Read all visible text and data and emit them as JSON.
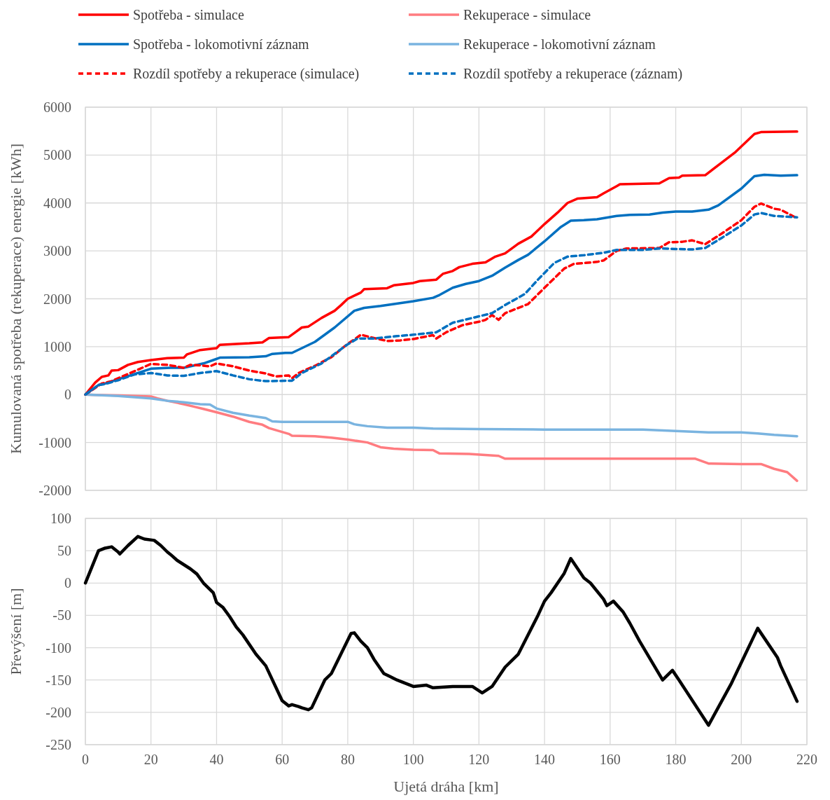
{
  "chart_data": [
    {
      "type": "line",
      "ylabel": "Kumulovaná spotřeba (rekuperace) energie [kWh]",
      "xlim": [
        0,
        220
      ],
      "xticks": [
        0,
        20,
        40,
        60,
        80,
        100,
        120,
        140,
        160,
        180,
        200,
        220
      ],
      "ylim": [
        -2000,
        6000
      ],
      "yticks": [
        -2000,
        -1000,
        0,
        1000,
        2000,
        3000,
        4000,
        5000,
        6000
      ],
      "grid": true,
      "legend": "top",
      "tick_labels": "y",
      "marker": "none",
      "series": [
        {
          "name": "Spotřeba - simulace",
          "color": "#ff0000",
          "line_style": "solid",
          "x": [
            0,
            3,
            5,
            7,
            8,
            10,
            13,
            16,
            20,
            25,
            30,
            31,
            35,
            40,
            41,
            50,
            54,
            56,
            62,
            64,
            66,
            68,
            72,
            76,
            78,
            80,
            84,
            85,
            92,
            94,
            100,
            102,
            107,
            109,
            112,
            114,
            118,
            122,
            125,
            128,
            132,
            136,
            140,
            144,
            147,
            150,
            156,
            158,
            162,
            163,
            175,
            178,
            181,
            182,
            189,
            198,
            204,
            206,
            217
          ],
          "values": [
            0,
            250,
            370,
            400,
            500,
            510,
            620,
            680,
            720,
            760,
            770,
            840,
            930,
            970,
            1040,
            1070,
            1090,
            1180,
            1200,
            1300,
            1400,
            1420,
            1600,
            1750,
            1870,
            2000,
            2130,
            2200,
            2220,
            2280,
            2330,
            2370,
            2400,
            2520,
            2580,
            2660,
            2730,
            2760,
            2880,
            2950,
            3150,
            3300,
            3560,
            3800,
            4000,
            4090,
            4120,
            4200,
            4350,
            4390,
            4410,
            4520,
            4530,
            4570,
            4580,
            5050,
            5440,
            5480,
            5490
          ]
        },
        {
          "name": "Rekuperace - simulace",
          "color": "#ff7c80",
          "line_style": "solid",
          "x": [
            0,
            5,
            10,
            20,
            22,
            25,
            30,
            33,
            36,
            40,
            45,
            50,
            54,
            56,
            60,
            62,
            63,
            70,
            75,
            80,
            86,
            90,
            94,
            100,
            106,
            108,
            117,
            126,
            128,
            140,
            160,
            186,
            190,
            200,
            206,
            210,
            214,
            217
          ],
          "values": [
            0,
            -10,
            -20,
            -40,
            -80,
            -130,
            -200,
            -250,
            -300,
            -370,
            -460,
            -570,
            -630,
            -700,
            -780,
            -820,
            -860,
            -870,
            -900,
            -940,
            -1000,
            -1100,
            -1130,
            -1150,
            -1160,
            -1230,
            -1240,
            -1280,
            -1340,
            -1340,
            -1340,
            -1340,
            -1440,
            -1450,
            -1450,
            -1550,
            -1620,
            -1800
          ]
        },
        {
          "name": "Spotřeba - lokomotivní záznam",
          "color": "#0070c0",
          "line_style": "solid",
          "x": [
            0,
            4,
            6,
            10,
            15,
            20,
            26,
            30,
            36,
            39,
            41,
            50,
            55,
            57,
            61,
            63,
            70,
            76,
            82,
            85,
            90,
            100,
            106,
            108,
            112,
            116,
            120,
            124,
            128,
            132,
            135,
            140,
            145,
            148,
            152,
            156,
            162,
            166,
            172,
            176,
            180,
            185,
            190,
            193,
            200,
            204,
            207,
            212,
            217
          ],
          "values": [
            0,
            200,
            230,
            320,
            430,
            540,
            560,
            560,
            650,
            720,
            770,
            780,
            800,
            850,
            870,
            870,
            1100,
            1400,
            1750,
            1810,
            1850,
            1950,
            2020,
            2080,
            2230,
            2310,
            2370,
            2480,
            2650,
            2810,
            2920,
            3200,
            3500,
            3630,
            3640,
            3660,
            3730,
            3750,
            3760,
            3800,
            3820,
            3820,
            3860,
            3950,
            4300,
            4560,
            4590,
            4570,
            4580
          ]
        },
        {
          "name": "Rekuperace - lokomotivní záznam",
          "color": "#7ab4e0",
          "line_style": "solid",
          "x": [
            0,
            10,
            20,
            25,
            30,
            35,
            38,
            40,
            45,
            50,
            55,
            57,
            60,
            70,
            80,
            82,
            86,
            92,
            100,
            106,
            120,
            140,
            160,
            170,
            180,
            190,
            200,
            205,
            210,
            217
          ],
          "values": [
            0,
            -30,
            -80,
            -130,
            -160,
            -200,
            -210,
            -290,
            -380,
            -440,
            -490,
            -560,
            -570,
            -570,
            -570,
            -620,
            -660,
            -690,
            -690,
            -710,
            -720,
            -730,
            -730,
            -730,
            -760,
            -790,
            -790,
            -810,
            -840,
            -870
          ]
        },
        {
          "name": "Rozdíl spotřeby a rekuperace (simulace)",
          "color": "#ff0000",
          "line_style": "dashed",
          "x": [
            0,
            5,
            8,
            12,
            16,
            20,
            25,
            30,
            32,
            35,
            38,
            40,
            45,
            50,
            55,
            58,
            62,
            63,
            65,
            70,
            75,
            80,
            82,
            84,
            88,
            92,
            96,
            100,
            106,
            107,
            110,
            115,
            120,
            122,
            124,
            126,
            128,
            135,
            140,
            146,
            149,
            156,
            158,
            162,
            165,
            175,
            178,
            182,
            185,
            189,
            194,
            200,
            204,
            206,
            210,
            212,
            217
          ],
          "values": [
            0,
            230,
            280,
            400,
            520,
            640,
            620,
            560,
            620,
            610,
            590,
            650,
            590,
            500,
            440,
            380,
            400,
            340,
            450,
            600,
            780,
            1060,
            1150,
            1250,
            1180,
            1120,
            1130,
            1160,
            1240,
            1170,
            1300,
            1450,
            1520,
            1560,
            1660,
            1560,
            1700,
            1890,
            2230,
            2630,
            2730,
            2770,
            2800,
            3000,
            3050,
            3060,
            3180,
            3190,
            3220,
            3140,
            3360,
            3640,
            3920,
            3990,
            3880,
            3860,
            3680
          ]
        },
        {
          "name": "Rozdíl spotřeby a rekuperace (záznam)",
          "color": "#0070c0",
          "line_style": "dashed",
          "x": [
            0,
            4,
            6,
            10,
            15,
            20,
            25,
            30,
            35,
            40,
            45,
            50,
            55,
            63,
            66,
            72,
            80,
            83,
            88,
            95,
            100,
            107,
            112,
            118,
            124,
            128,
            134,
            138,
            143,
            147,
            152,
            158,
            162,
            170,
            175,
            180,
            185,
            189,
            194,
            200,
            204,
            206,
            210,
            217
          ],
          "values": [
            0,
            200,
            220,
            300,
            420,
            450,
            400,
            390,
            450,
            490,
            400,
            320,
            280,
            290,
            450,
            650,
            1050,
            1170,
            1170,
            1220,
            1250,
            1300,
            1500,
            1600,
            1700,
            1870,
            2100,
            2400,
            2750,
            2880,
            2910,
            2960,
            3020,
            3020,
            3050,
            3040,
            3030,
            3060,
            3270,
            3530,
            3760,
            3790,
            3730,
            3700
          ]
        }
      ]
    },
    {
      "type": "line",
      "xlabel": "Ujetá dráha [km]",
      "ylabel": "Převýšení [m]",
      "xlim": [
        0,
        220
      ],
      "xticks": [
        0,
        20,
        40,
        60,
        80,
        100,
        120,
        140,
        160,
        180,
        200,
        220
      ],
      "ylim": [
        -250,
        100
      ],
      "yticks": [
        -250,
        -200,
        -150,
        -100,
        -50,
        0,
        50,
        100
      ],
      "grid": true,
      "marker": "none",
      "series": [
        {
          "color": "#000000",
          "line_style": "solid",
          "x": [
            0,
            4,
            6,
            8,
            10,
            10.5,
            13,
            16,
            18,
            21,
            23,
            25,
            26,
            28,
            32,
            34,
            36,
            39,
            40,
            42,
            44,
            46,
            48,
            52,
            55,
            60,
            62,
            63,
            65,
            66,
            68,
            69,
            73,
            75,
            81,
            82,
            84,
            86,
            88,
            91,
            93,
            95,
            100,
            104,
            106,
            112,
            118,
            121,
            124,
            128,
            132,
            138,
            140,
            142,
            146,
            148,
            152,
            154,
            158,
            159,
            161,
            164,
            166,
            169,
            176,
            179,
            181,
            190,
            197,
            205,
            211,
            212,
            217
          ],
          "values": [
            0,
            50,
            54,
            56,
            48,
            45,
            58,
            72,
            68,
            66,
            58,
            48,
            44,
            35,
            22,
            14,
            0,
            -15,
            -30,
            -38,
            -52,
            -68,
            -80,
            -110,
            -128,
            -182,
            -190,
            -188,
            -191,
            -193,
            -196,
            -193,
            -150,
            -140,
            -78,
            -77,
            -90,
            -100,
            -118,
            -140,
            -145,
            -150,
            -160,
            -158,
            -162,
            -160,
            -160,
            -170,
            -160,
            -130,
            -110,
            -50,
            -28,
            -15,
            15,
            38,
            8,
            0,
            -25,
            -35,
            -28,
            -45,
            -62,
            -90,
            -150,
            -135,
            -150,
            -220,
            -155,
            -70,
            -115,
            -128,
            -183
          ]
        }
      ]
    }
  ]
}
